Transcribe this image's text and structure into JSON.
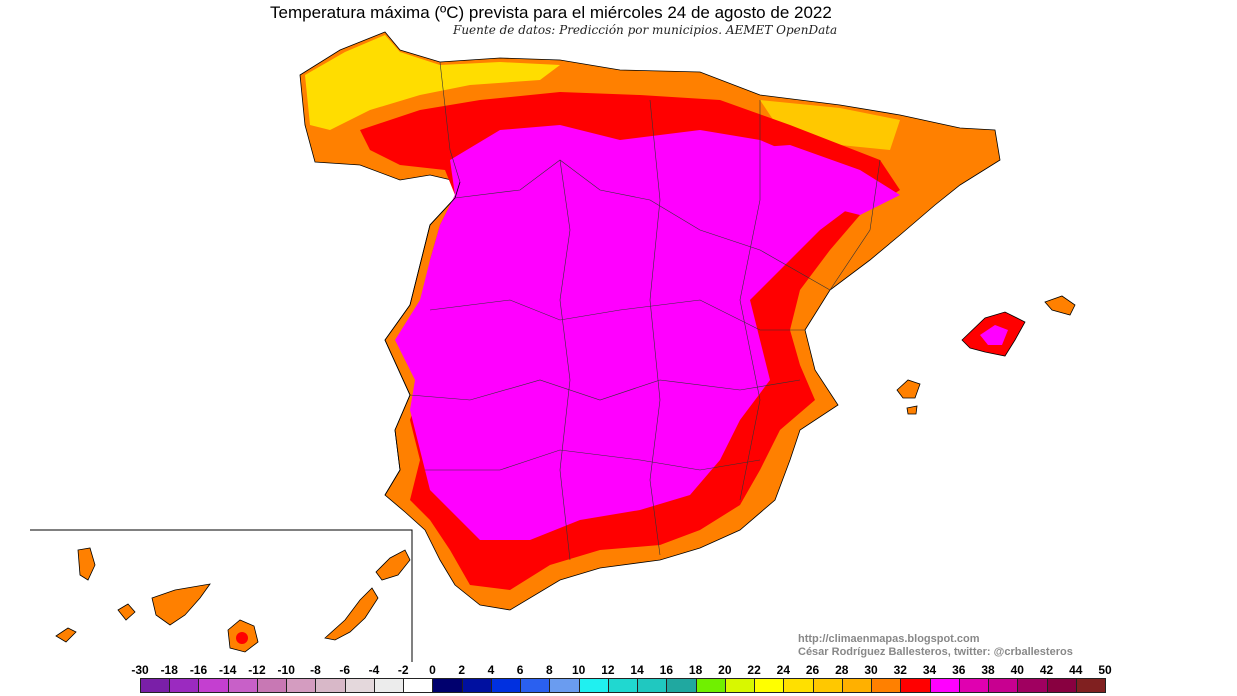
{
  "title": "Temperatura máxima (ºC) prevista para el miércoles 24 de agosto de 2022",
  "subtitle": "Fuente de datos: Predicción por municipios. AEMET OpenData",
  "credits": {
    "url": "http://climaenmapas.blogspot.com",
    "author": "César Rodríguez Ballesteros, twitter: @crballesteros"
  },
  "legend": {
    "labels": [
      "-30",
      "-18",
      "-16",
      "-14",
      "-12",
      "-10",
      "-8",
      "-6",
      "-4",
      "-2",
      "0",
      "2",
      "4",
      "6",
      "8",
      "10",
      "12",
      "14",
      "16",
      "18",
      "20",
      "22",
      "24",
      "26",
      "28",
      "30",
      "32",
      "34",
      "36",
      "38",
      "40",
      "42",
      "44",
      "50"
    ],
    "colors": [
      "#7a1fa8",
      "#9b2ac0",
      "#c43fd0",
      "#c860c8",
      "#c878b4",
      "#d49cc0",
      "#d8b8c8",
      "#e4d8dc",
      "#ececec",
      "#ffffff",
      "#00006e",
      "#0010a0",
      "#0030e0",
      "#2a60f0",
      "#6a9cf0",
      "#20f0f0",
      "#20d8d0",
      "#20c8c0",
      "#20a8a0",
      "#70f000",
      "#d8f800",
      "#ffff00",
      "#ffe000",
      "#ffc800",
      "#ffb000",
      "#ff8000",
      "#ff0000",
      "#ff00ff",
      "#e000b0",
      "#c80090",
      "#a00060",
      "#880040",
      "#802020"
    ]
  },
  "map_colors": {
    "interior_hot": "#ff00ff",
    "hot": "#ff0000",
    "warm": "#ff8000",
    "mild": "#ffc800",
    "cool_north": "#ffff00"
  }
}
